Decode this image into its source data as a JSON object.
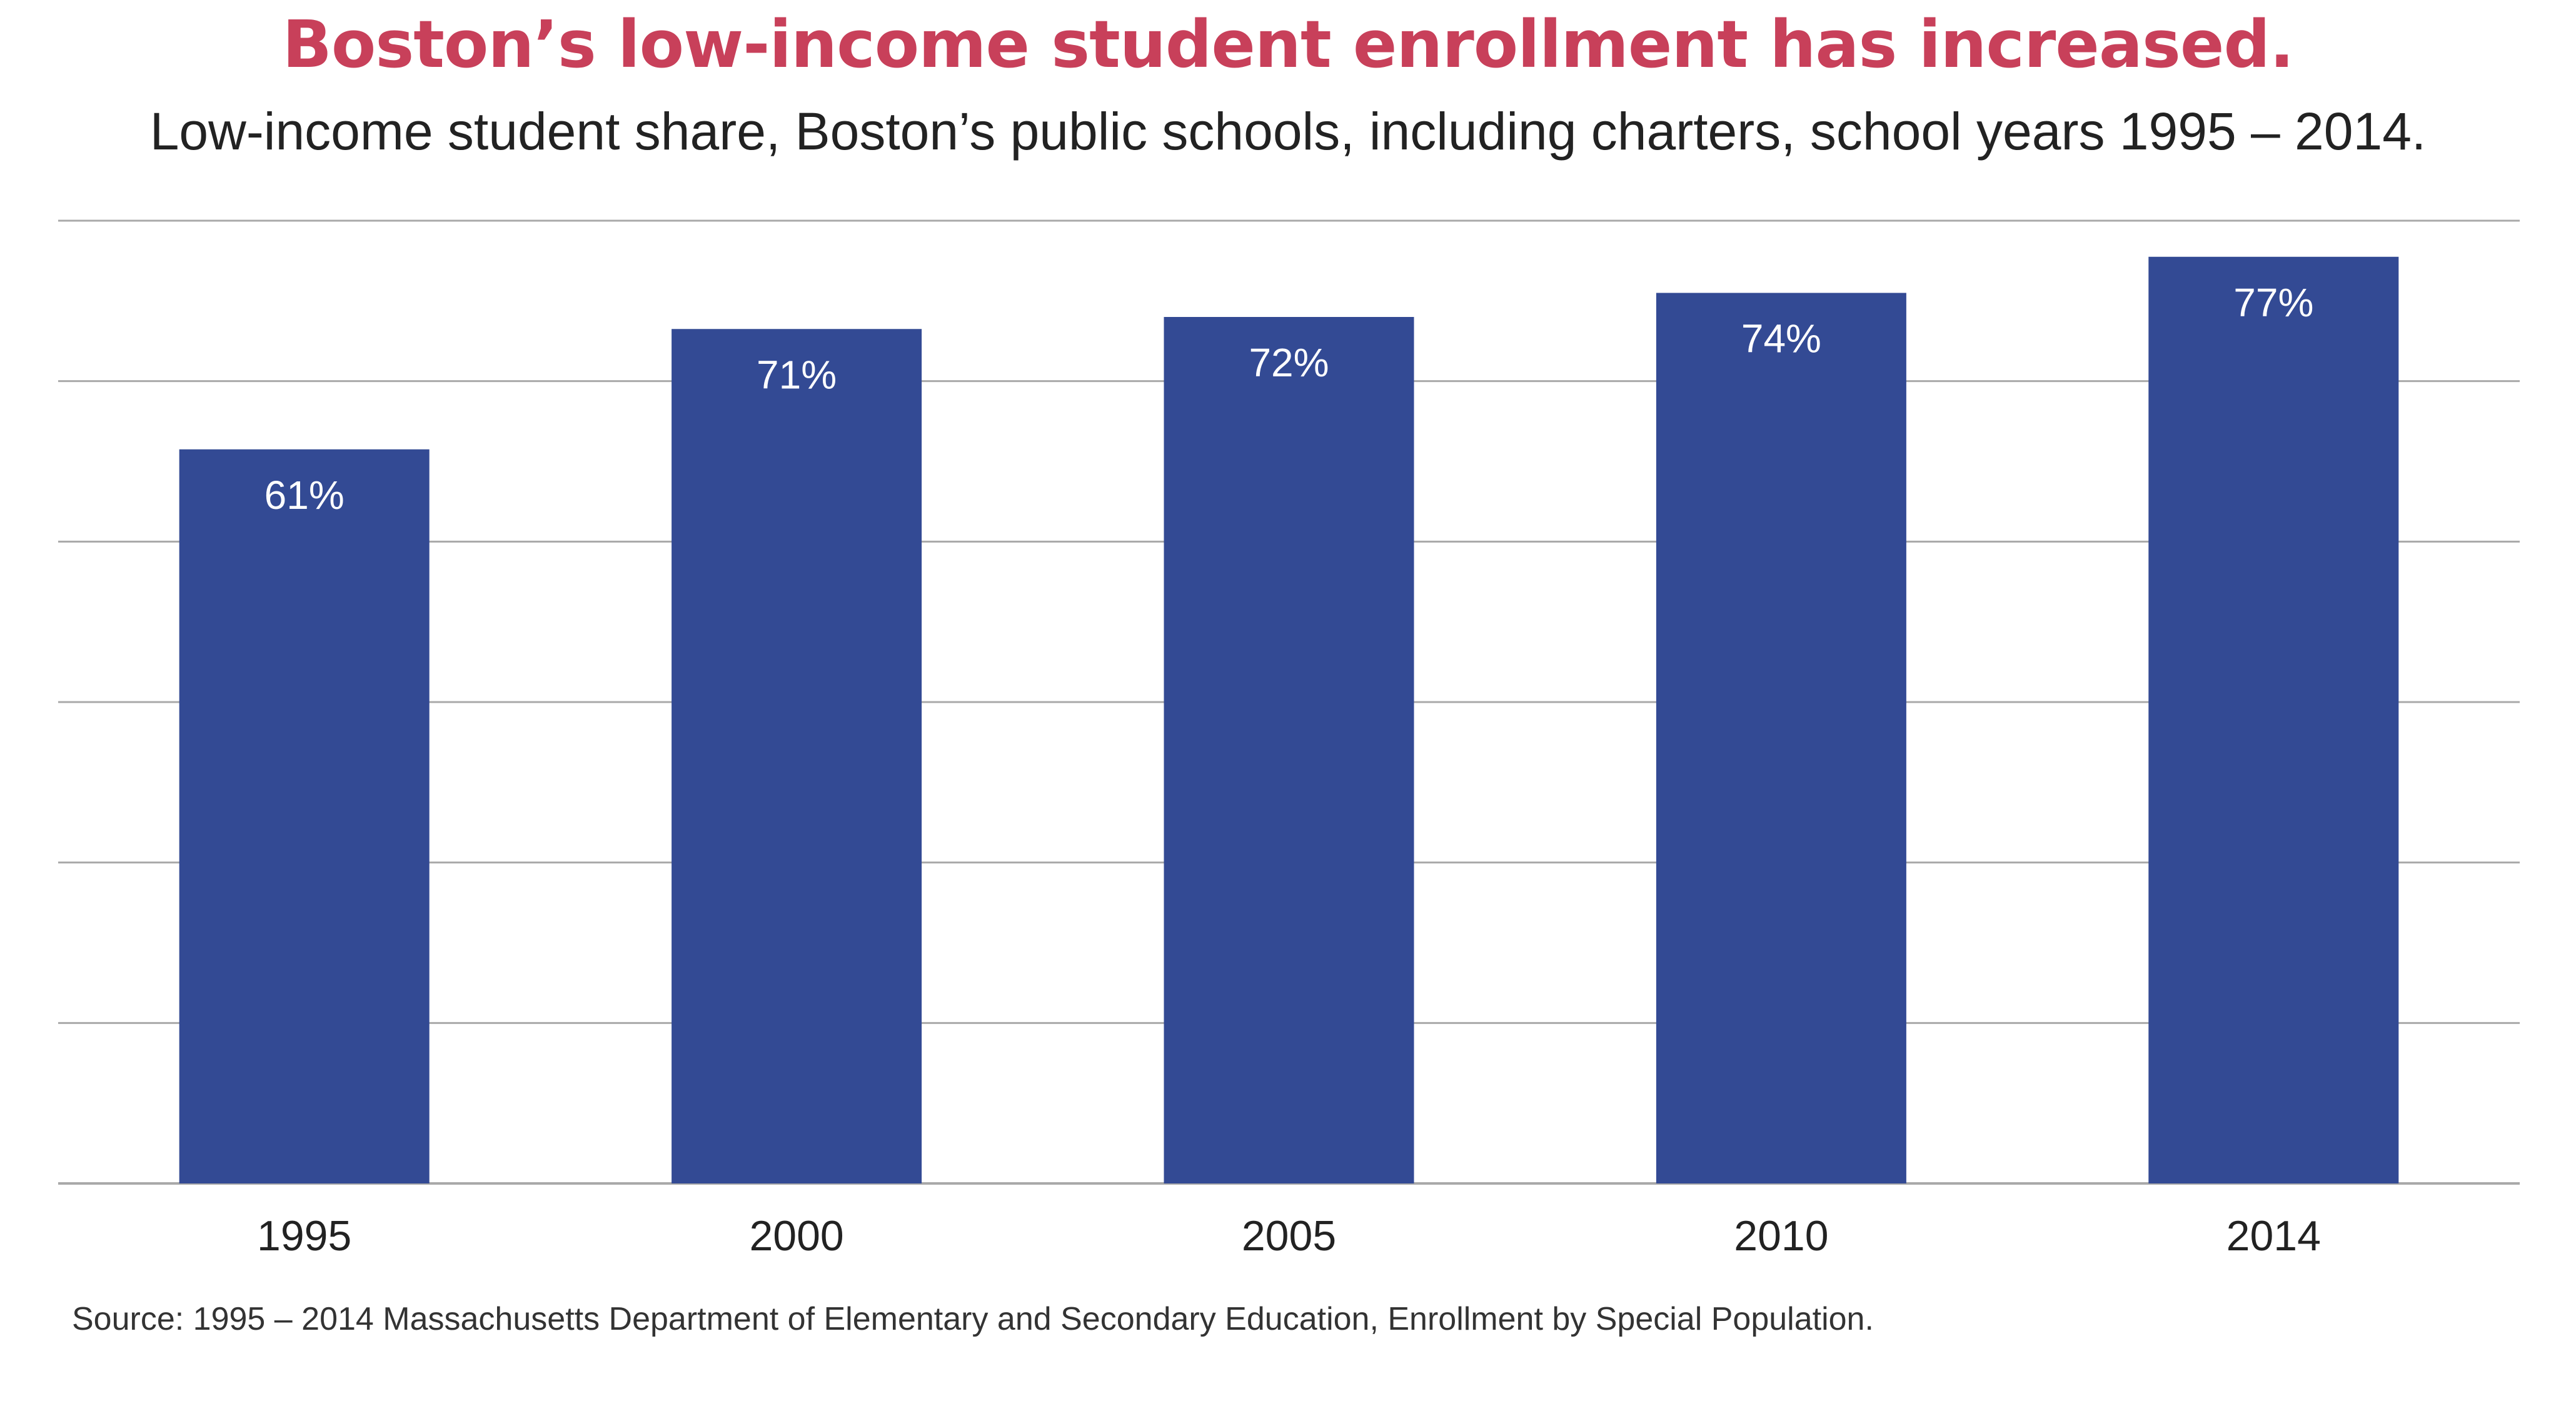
{
  "chart_data": {
    "type": "bar",
    "title": "Boston’s low-income student enrollment has increased.",
    "subtitle": "Low-income student share, Boston’s public schools, including charters, school years 1995 – 2014.",
    "categories": [
      "1995",
      "2000",
      "2005",
      "2010",
      "2014"
    ],
    "values": [
      61,
      71,
      72,
      74,
      77
    ],
    "value_labels": [
      "61%",
      "71%",
      "72%",
      "74%",
      "77%"
    ],
    "ylim": [
      0,
      80
    ],
    "y_gridlines": [
      0,
      13.33,
      26.67,
      40,
      53.33,
      66.67,
      80
    ],
    "grid": true,
    "xlabel": "",
    "ylabel": "",
    "colors": {
      "bar": "#334a94",
      "grid": "#a9a9a9",
      "title": "#c8405a"
    }
  },
  "source": "Source: 1995 – 2014 Massachusetts Department of Elementary and Secondary Education, Enrollment by Special Population."
}
